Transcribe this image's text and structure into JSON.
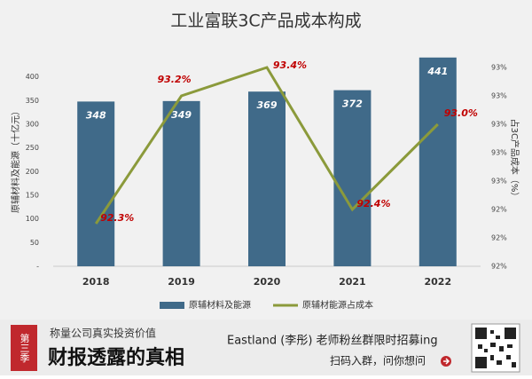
{
  "chart_data": {
    "type": "bar",
    "title": "工业富联3C产品成本构成",
    "categories": [
      "2018",
      "2019",
      "2020",
      "2021",
      "2022"
    ],
    "series": [
      {
        "name": "原辅材料及能源",
        "type": "bar",
        "color": "#406a89",
        "values": [
          348,
          349,
          369,
          372,
          441
        ]
      },
      {
        "name": "原辅材能源占成本",
        "type": "line",
        "axis": "y2",
        "color": "#8b9a3b",
        "values": [
          92.3,
          93.2,
          93.4,
          92.4,
          93.0
        ],
        "value_labels": [
          "92.3%",
          "93.2%",
          "93.4%",
          "92.4%",
          "93.0%"
        ]
      }
    ],
    "ylabel": "原辅材料及能源（十亿元）",
    "y2label": "占3C产品成本（%）",
    "ylim": [
      0,
      450
    ],
    "yticks": [
      {
        "value": 0,
        "label": "-"
      },
      50,
      100,
      150,
      200,
      250,
      300,
      350,
      400
    ],
    "y2lim": [
      92.0,
      93.5
    ],
    "y2ticks": [
      {
        "value": 92.0,
        "label": "92%"
      },
      {
        "value": 92.2,
        "label": "92%"
      },
      {
        "value": 92.4,
        "label": "92%"
      },
      {
        "value": 92.6,
        "label": "93%"
      },
      {
        "value": 92.8,
        "label": "93%"
      },
      {
        "value": 93.0,
        "label": "93%"
      },
      {
        "value": 93.2,
        "label": "93%"
      },
      {
        "value": 93.4,
        "label": "93%"
      }
    ],
    "grid": false,
    "legend": "bottom"
  },
  "banner": {
    "badge": "第三季",
    "tagline": "称量公司真实投资价值",
    "headline": "财报透露的真相",
    "recruit": "Eastland (李彤) 老师粉丝群限时招募ing",
    "action": "扫码入群，问你想问"
  }
}
